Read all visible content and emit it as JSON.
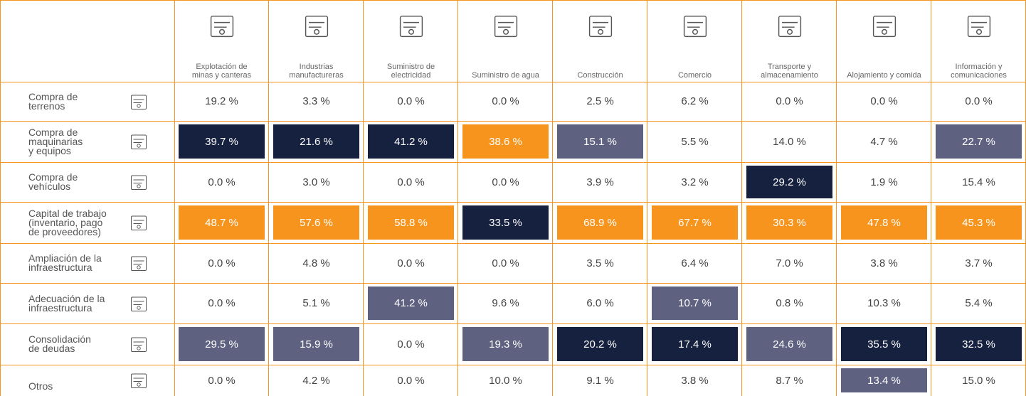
{
  "header": {
    "columns": [
      [
        "Explotación de",
        "minas y canteras"
      ],
      [
        "Industrias",
        "manufactureras"
      ],
      [
        "Suministro de",
        "electricidad"
      ],
      [
        "Suministro de agua"
      ],
      [
        "Construcción"
      ],
      [
        "Comercio"
      ],
      [
        "Transporte y",
        "almacenamiento"
      ],
      [
        "Alojamiento y comida"
      ],
      [
        "Información y",
        "comunicaciones"
      ]
    ]
  },
  "table": {
    "rows": [
      {
        "label": [
          "Compra de",
          "terrenos"
        ],
        "cells": [
          "19.2 %",
          "3.3 %",
          "0.0 %",
          "0.0 %",
          "2.5 %",
          "6.2 %",
          "0.0 %",
          "0.0 %",
          "0.0 %"
        ],
        "fills": [
          null,
          null,
          null,
          null,
          null,
          null,
          null,
          null,
          null
        ]
      },
      {
        "label": [
          "Compra de",
          "maquinarias",
          "y equipos"
        ],
        "cells": [
          "39.7 %",
          "21.6 %",
          "41.2 %",
          "38.6 %",
          "15.1 %",
          "5.5 %",
          "14.0 %",
          "4.7 %",
          "22.7 %"
        ],
        "fills": [
          "#16203f",
          "#16203f",
          "#16203f",
          "#f7941d",
          "#5f6180",
          null,
          null,
          null,
          "#5f6180"
        ]
      },
      {
        "label": [
          "Compra de",
          "vehículos"
        ],
        "cells": [
          "0.0 %",
          "3.0 %",
          "0.0 %",
          "0.0 %",
          "3.9 %",
          "3.2 %",
          "29.2 %",
          "1.9 %",
          "15.4 %"
        ],
        "fills": [
          null,
          null,
          null,
          null,
          null,
          null,
          "#16203f",
          null,
          null
        ]
      },
      {
        "label": [
          "Capital de trabajo",
          "(inventario, pago",
          "de proveedores)"
        ],
        "cells": [
          "48.7 %",
          "57.6 %",
          "58.8 %",
          "33.5 %",
          "68.9 %",
          "67.7 %",
          "30.3 %",
          "47.8 %",
          "45.3 %"
        ],
        "fills": [
          "#f7941d",
          "#f7941d",
          "#f7941d",
          "#16203f",
          "#f7941d",
          "#f7941d",
          "#f7941d",
          "#f7941d",
          "#f7941d"
        ]
      },
      {
        "label": [
          "Ampliación de la",
          "infraestructura"
        ],
        "cells": [
          "0.0 %",
          "4.8 %",
          "0.0 %",
          "0.0 %",
          "3.5 %",
          "6.4 %",
          "7.0 %",
          "3.8 %",
          "3.7 %"
        ],
        "fills": [
          null,
          null,
          null,
          null,
          null,
          null,
          null,
          null,
          null
        ]
      },
      {
        "label": [
          "Adecuación de la",
          "infraestructura"
        ],
        "cells": [
          "0.0 %",
          "5.1 %",
          "41.2 %",
          "9.6 %",
          "6.0 %",
          "10.7 %",
          "0.8 %",
          "10.3 %",
          "5.4 %"
        ],
        "fills": [
          null,
          null,
          "#5f6180",
          null,
          null,
          "#5f6180",
          null,
          null,
          null
        ]
      },
      {
        "label": [
          "Consolidación",
          "de deudas"
        ],
        "cells": [
          "29.5 %",
          "15.9 %",
          "0.0 %",
          "19.3 %",
          "20.2 %",
          "17.4 %",
          "24.6 %",
          "35.5 %",
          "32.5 %"
        ],
        "fills": [
          "#5f6180",
          "#5f6180",
          null,
          "#5f6180",
          "#16203f",
          "#16203f",
          "#5f6180",
          "#16203f",
          "#16203f"
        ]
      },
      {
        "label": [
          "Otros"
        ],
        "cells": [
          "0.0 %",
          "4.2 %",
          "0.0 %",
          "10.0 %",
          "9.1 %",
          "3.8 %",
          "8.7 %",
          "13.4 %",
          "15.0 %"
        ],
        "fills": [
          null,
          null,
          null,
          null,
          null,
          null,
          null,
          "#5f6180",
          null
        ]
      }
    ]
  }
}
